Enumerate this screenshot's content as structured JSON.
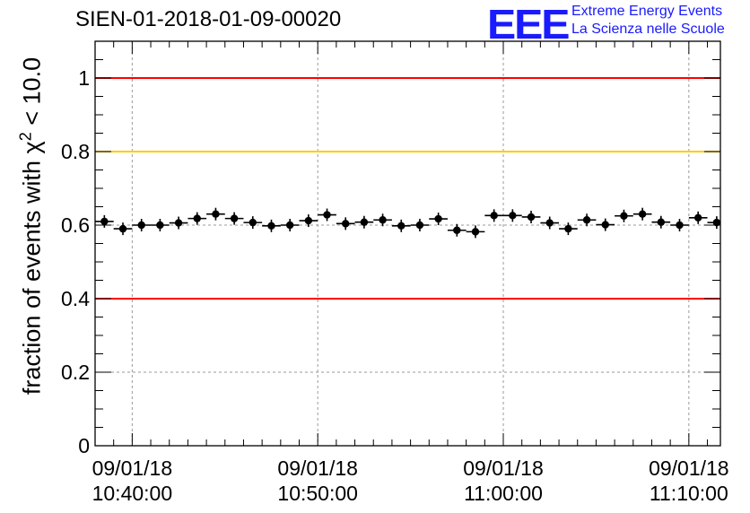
{
  "title": "SIEN-01-2018-01-09-00020",
  "logo": {
    "mark": "EEE",
    "line1": "Extreme Energy Events",
    "line2": "La Scienza nelle Scuole"
  },
  "chart_data": {
    "type": "scatter",
    "title": "SIEN-01-2018-01-09-00020",
    "ylabel_prefix": "fraction of events with",
    "ylabel_symbol": "χ",
    "ylabel_superscript": "2",
    "ylabel_suffix": "< 10.0",
    "ylim": [
      0,
      1.1
    ],
    "xlim_minutes": [
      -0.5,
      33.2
    ],
    "yticks": [
      "0",
      "0.2",
      "0.4",
      "0.6",
      "0.8",
      "1"
    ],
    "xticks": [
      {
        "minutes": 1.5,
        "date": "09/01/18",
        "time": "10:40:00"
      },
      {
        "minutes": 11.5,
        "date": "09/01/18",
        "time": "10:50:00"
      },
      {
        "minutes": 21.5,
        "date": "09/01/18",
        "time": "11:00:00"
      },
      {
        "minutes": 31.5,
        "date": "09/01/18",
        "time": "11:10:00"
      }
    ],
    "reference_lines": [
      {
        "y": 1.0,
        "color": "#ff0000"
      },
      {
        "y": 0.8,
        "color": "#ffcc00"
      },
      {
        "y": 0.4,
        "color": "#ff0000"
      }
    ],
    "grid": true,
    "bin_width_minutes": 1.0,
    "series": [
      {
        "name": "fraction",
        "x_minutes": [
          0,
          1,
          2,
          3,
          4,
          5,
          6,
          7,
          8,
          9,
          10,
          11,
          12,
          13,
          14,
          15,
          16,
          17,
          18,
          19,
          20,
          21,
          22,
          23,
          24,
          25,
          26,
          27,
          28,
          29,
          30,
          31,
          32,
          33
        ],
        "values": [
          0.61,
          0.59,
          0.6,
          0.6,
          0.606,
          0.618,
          0.63,
          0.618,
          0.607,
          0.598,
          0.6,
          0.612,
          0.628,
          0.604,
          0.608,
          0.614,
          0.598,
          0.6,
          0.617,
          0.586,
          0.582,
          0.626,
          0.626,
          0.622,
          0.606,
          0.59,
          0.614,
          0.601,
          0.625,
          0.63,
          0.608,
          0.6,
          0.62,
          0.607
        ]
      }
    ]
  }
}
